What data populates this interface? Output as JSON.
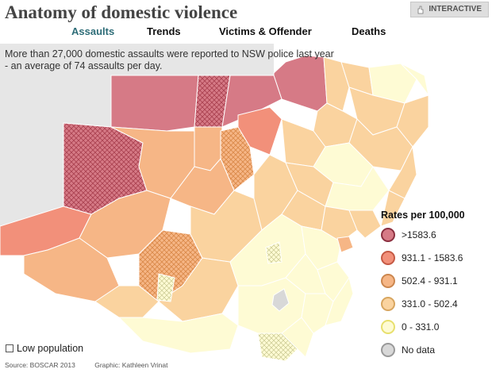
{
  "header": {
    "title": "Anatomy of domestic violence",
    "badge_label": "INTERACTIVE"
  },
  "tabs": [
    {
      "label": "Assaults",
      "active": true
    },
    {
      "label": "Trends",
      "active": false
    },
    {
      "label": "Victims & Offender",
      "active": false
    },
    {
      "label": "Deaths",
      "active": false
    }
  ],
  "intro": "More than 27,000 domestic assaults were reported to NSW police last year - an average of 74 assaults per day.",
  "legend": {
    "title": "Rates per 100,000",
    "items": [
      {
        "label": ">1583.6",
        "color": "#d67a86",
        "border": "#8c3040"
      },
      {
        "label": "931.1 - 1583.6",
        "color": "#f2907a",
        "border": "#c55a45"
      },
      {
        "label": "502.4 - 931.1",
        "color": "#f6b686",
        "border": "#cc874f"
      },
      {
        "label": "331.0 - 502.4",
        "color": "#fad39f",
        "border": "#d8a660"
      },
      {
        "label": "0 - 331.0",
        "color": "#fefbd4",
        "border": "#e8e06e"
      },
      {
        "label": "No data",
        "color": "#d8d8d8",
        "border": "#9a9a9a"
      }
    ]
  },
  "low_population_label": "Low population",
  "credits": {
    "source": "Source: BOSCAR 2013",
    "graphic": "Graphic: Kathleen Vrinat"
  },
  "colors": {
    "accent_tab": "#2e6d78",
    "land_background": "#e6e6e6"
  },
  "icons": {
    "badge": "pointer-hand-icon",
    "low_population": "hatch-square-icon"
  }
}
